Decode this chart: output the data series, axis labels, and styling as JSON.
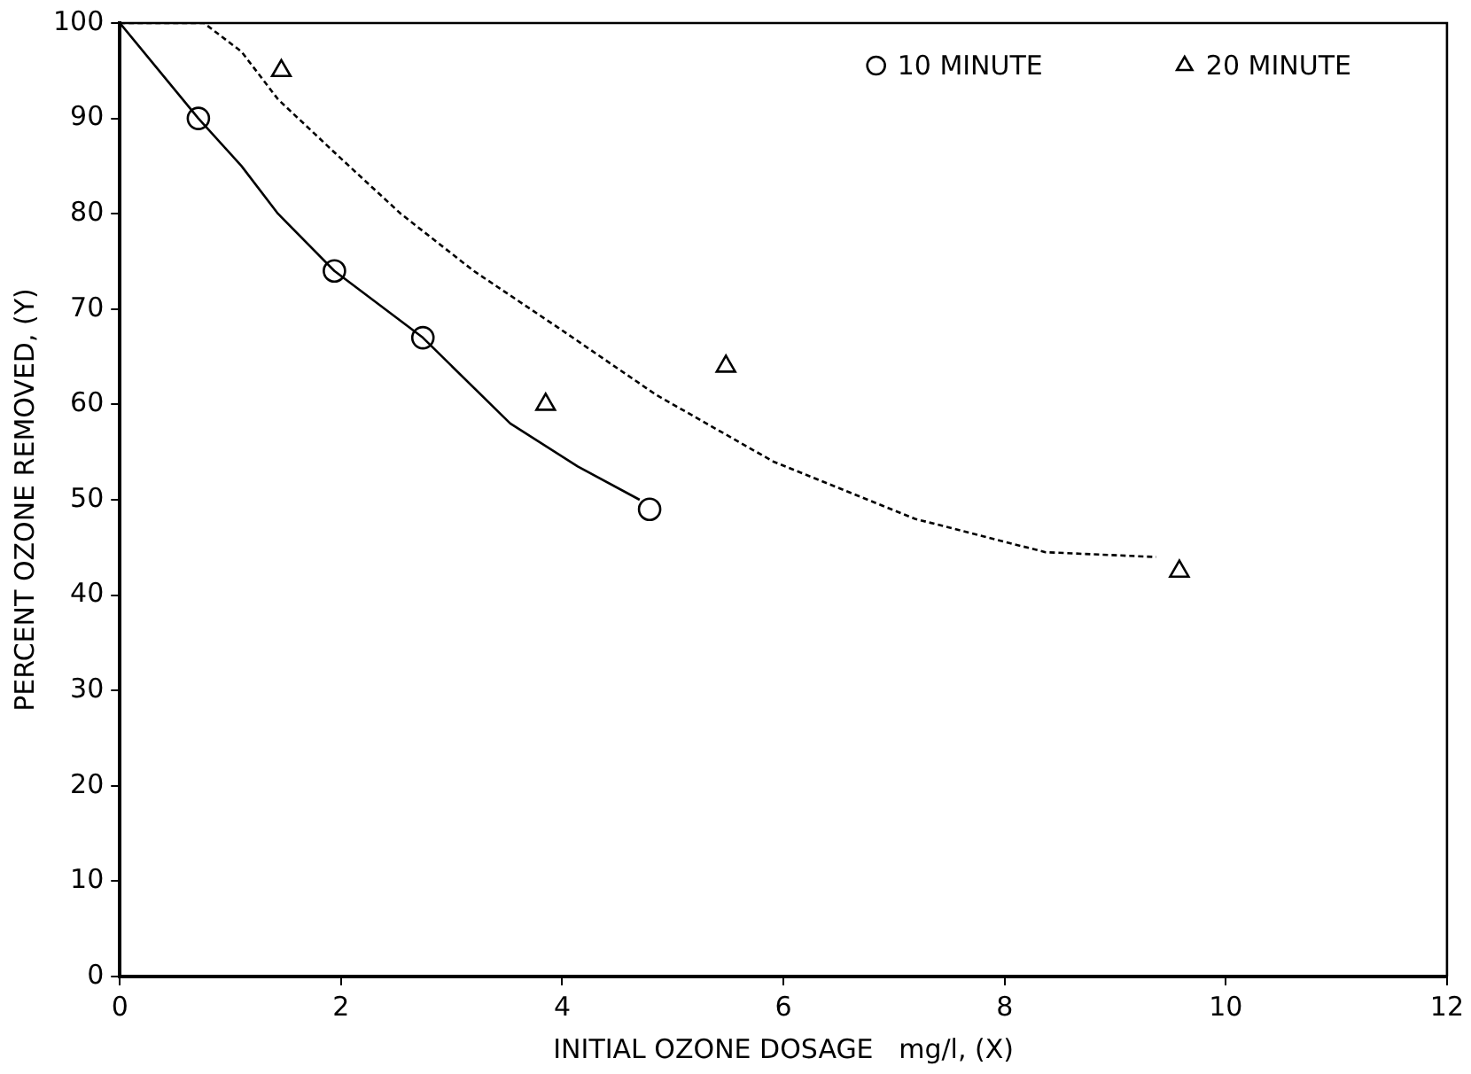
{
  "chart_data": {
    "type": "scatter",
    "xlabel": "INITIAL OZONE DOSAGE   mg/l, (X)",
    "ylabel": "PERCENT OZONE REMOVED, (Y)",
    "xlim": [
      0,
      12
    ],
    "ylim": [
      0,
      100
    ],
    "xticks": [
      0,
      2,
      4,
      6,
      8,
      10,
      12
    ],
    "yticks": [
      0,
      10,
      20,
      30,
      40,
      50,
      60,
      70,
      80,
      90,
      100
    ],
    "grid": false,
    "legend": "top right",
    "series": [
      {
        "name": "10 MINUTE",
        "type": "scatter",
        "marker": "circle",
        "color": "#000000",
        "x": [
          0.71,
          1.94,
          2.74,
          4.79
        ],
        "values": [
          90,
          74,
          67,
          49
        ]
      },
      {
        "name": "20 MINUTE",
        "type": "scatter",
        "marker": "triangle",
        "color": "#000000",
        "x": [
          1.46,
          3.85,
          5.48,
          9.58
        ],
        "values": [
          95,
          60,
          64,
          42.5
        ]
      },
      {
        "type": "line",
        "marker": "none",
        "line_style": "solid",
        "color": "#000000",
        "x": [
          0,
          0.71,
          1.1,
          1.43,
          1.94,
          2.74,
          3.53,
          4.14,
          4.7
        ],
        "values": [
          100,
          90,
          85,
          80,
          74,
          67,
          58,
          53.5,
          50
        ]
      },
      {
        "type": "line",
        "marker": "none",
        "line_style": "dashed",
        "color": "#000000",
        "x": [
          0,
          0.76,
          1.1,
          1.43,
          1.98,
          2.54,
          3.2,
          3.97,
          4.85,
          5.91,
          7.19,
          8.37,
          9.37
        ],
        "values": [
          100,
          100,
          97,
          92,
          86,
          80,
          74,
          68,
          61,
          54,
          48,
          44.5,
          44
        ]
      }
    ]
  }
}
